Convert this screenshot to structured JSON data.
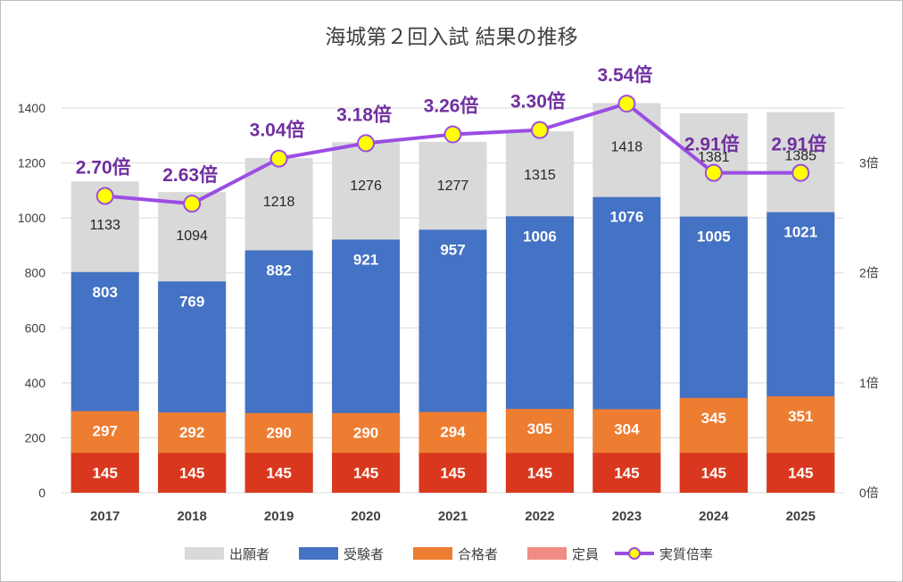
{
  "chart_data": {
    "type": "bar",
    "title": "海城第２回入試 結果の推移",
    "categories": [
      "2017",
      "2018",
      "2019",
      "2020",
      "2021",
      "2022",
      "2023",
      "2024",
      "2025"
    ],
    "series": [
      {
        "name": "出願者",
        "values": [
          1133,
          1094,
          1218,
          1276,
          1277,
          1315,
          1418,
          1381,
          1385
        ],
        "color": "#d9d9d9"
      },
      {
        "name": "受験者",
        "values": [
          803,
          769,
          882,
          921,
          957,
          1006,
          1076,
          1005,
          1021
        ],
        "color": "#4472c4"
      },
      {
        "name": "合格者",
        "values": [
          297,
          292,
          290,
          290,
          294,
          305,
          304,
          345,
          351
        ],
        "color": "#ed7d31"
      },
      {
        "name": "定員",
        "values": [
          145,
          145,
          145,
          145,
          145,
          145,
          145,
          145,
          145
        ],
        "color": "#d9381e"
      },
      {
        "name": "実質倍率",
        "type": "line",
        "values": [
          2.7,
          2.63,
          3.04,
          3.18,
          3.26,
          3.3,
          3.54,
          2.91,
          2.91
        ],
        "labels": [
          "2.70倍",
          "2.63倍",
          "3.04倍",
          "3.18倍",
          "3.26倍",
          "3.30倍",
          "3.54倍",
          "2.91倍",
          "2.91倍"
        ],
        "color": "#9b4de3",
        "marker_color": "#ffff00"
      }
    ],
    "ylim": [
      0,
      1400
    ],
    "yticks": [
      "0",
      "200",
      "400",
      "600",
      "800",
      "1000",
      "1200",
      "1400"
    ],
    "y2lim": [
      0,
      3.5
    ],
    "y2ticks": [
      "0倍",
      "1倍",
      "2倍",
      "3倍"
    ],
    "grid": true,
    "legend_position": "bottom",
    "legend_swatch_colors": [
      "#d9d9d9",
      "#4472c4",
      "#ed7d31",
      "#f08c84"
    ]
  }
}
